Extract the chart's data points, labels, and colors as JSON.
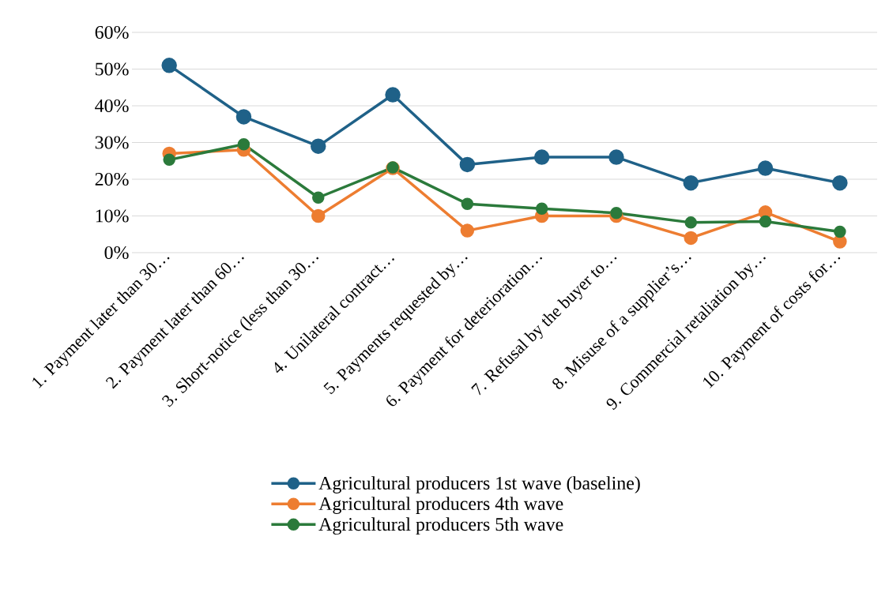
{
  "chart_data": {
    "type": "line",
    "categories": [
      "1. Payment later than 30…",
      "2. Payment later than 60…",
      "3. Short-notice (less than 30…",
      "4. Unilateral contract…",
      "5. Payments requested by…",
      "6. Payment for deterioration…",
      "7. Refusal by the buyer to…",
      "8. Misuse of a supplier’s…",
      "9. Commercial retaliation by…",
      "10. Payment of costs for…"
    ],
    "series": [
      {
        "name": "Agricultural producers 1st wave (baseline)",
        "color": "#1f6188",
        "values": [
          51,
          37,
          29,
          43,
          24,
          26,
          26,
          19,
          23,
          19
        ]
      },
      {
        "name": "Agricultural producers 4th wave",
        "color": "#ed7d31",
        "values": [
          27,
          28,
          10,
          23,
          6,
          10,
          10,
          4,
          11,
          3
        ]
      },
      {
        "name": "Agricultural producers 5th wave",
        "color": "#2b7a3b",
        "values": [
          25.3,
          29.5,
          15,
          23.2,
          13.3,
          12,
          10.8,
          8.2,
          8.5,
          5.7
        ]
      }
    ],
    "ylim": [
      0,
      60
    ],
    "yticks": [
      {
        "value": 0,
        "label": "0%"
      },
      {
        "value": 10,
        "label": "10%"
      },
      {
        "value": 20,
        "label": "20%"
      },
      {
        "value": 30,
        "label": "30%"
      },
      {
        "value": 40,
        "label": "40%"
      },
      {
        "value": 50,
        "label": "50%"
      },
      {
        "value": 60,
        "label": "60%"
      }
    ],
    "grid": "y",
    "legend": "bottom",
    "marker": "circle",
    "line_style": "solid"
  }
}
